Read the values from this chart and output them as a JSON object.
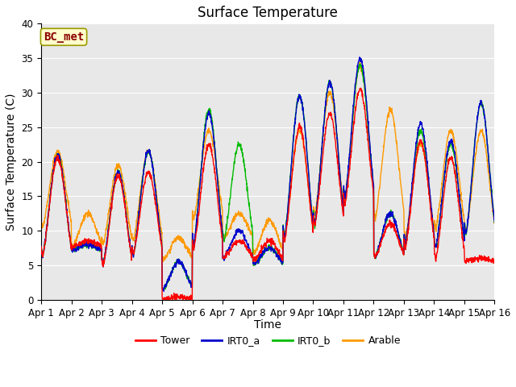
{
  "title": "Surface Temperature",
  "xlabel": "Time",
  "ylabel": "Surface Temperature (C)",
  "ylim": [
    0,
    40
  ],
  "annotation": "BC_met",
  "series_colors": {
    "Tower": "#ff0000",
    "IRT0_a": "#0000cc",
    "IRT0_b": "#00bb00",
    "Arable": "#ff9900"
  },
  "legend_entries": [
    "Tower",
    "IRT0_a",
    "IRT0_b",
    "Arable"
  ],
  "x_tick_labels": [
    "Apr 1",
    "Apr 2",
    "Apr 3",
    "Apr 4",
    "Apr 5",
    "Apr 6",
    "Apr 7",
    "Apr 8",
    "Apr 9",
    "Apr 10",
    "Apr 11",
    "Apr 12",
    "Apr 13",
    "Apr 14",
    "Apr 15",
    "Apr 16"
  ],
  "background_color": "#e8e8e8",
  "plot_bg_color": "#e8e8e8",
  "grid_color": "#ffffff",
  "n_per_day": 144,
  "n_days": 15,
  "title_fontsize": 12,
  "axis_label_fontsize": 10,
  "tick_fontsize": 8.5,
  "legend_fontsize": 9,
  "line_width": 1.0,
  "annotation_fontsize": 10,
  "annotation_color": "#8b0000",
  "annotation_bg": "#ffffcc",
  "annotation_edge": "#999900"
}
